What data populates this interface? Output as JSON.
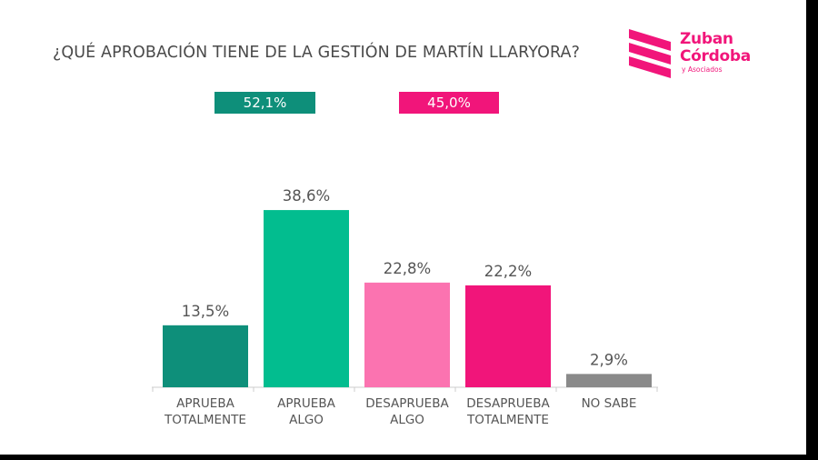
{
  "title": "¿QUÉ APROBACIÓN TIENE DE LA GESTIÓN DE MARTÍN LLARYORA?",
  "logo": {
    "line1": "Zuban",
    "line2": "Córdoba",
    "line3": "y Asociados"
  },
  "totals": [
    {
      "value": "52,1%",
      "color": "#0e8f7a"
    },
    {
      "value": "45,0%",
      "color": "#f1157a"
    }
  ],
  "colors": {
    "accent": "#f1157a",
    "axis": "#cccccc",
    "text": "#555555"
  },
  "chart_data": {
    "type": "bar",
    "title": "¿QUÉ APROBACIÓN TIENE DE LA GESTIÓN DE MARTÍN LLARYORA?",
    "categories": [
      [
        "APRUEBA",
        "TOTALMENTE"
      ],
      [
        "APRUEBA",
        "ALGO"
      ],
      [
        "DESAPRUEBA",
        "ALGO"
      ],
      [
        "DESAPRUEBA",
        "TOTALMENTE"
      ],
      [
        "NO SABE"
      ]
    ],
    "values": [
      13.5,
      38.6,
      22.8,
      22.2,
      2.9
    ],
    "value_labels": [
      "13,5%",
      "38,6%",
      "22,8%",
      "22,2%",
      "2,9%"
    ],
    "bar_colors": [
      "#0e8f7a",
      "#02bd8f",
      "#fb73b0",
      "#f1157a",
      "#8a8a8a"
    ],
    "ylim": [
      0,
      40
    ],
    "grid": false,
    "legend": "none"
  }
}
